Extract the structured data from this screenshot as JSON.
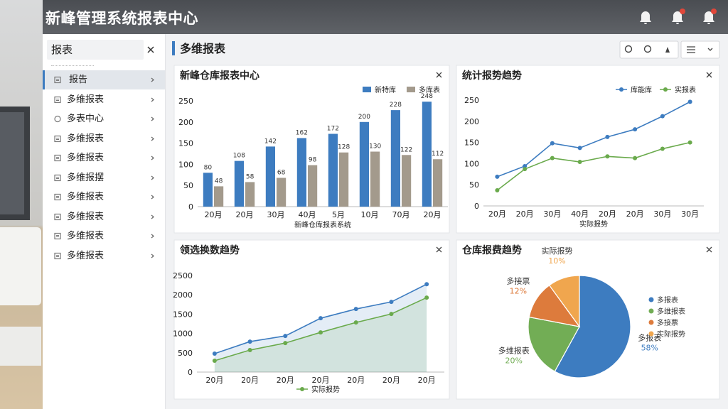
{
  "topbar": {
    "title": "新峰管理系统报表中心"
  },
  "sidebar": {
    "search": "报表",
    "items": [
      "报告",
      "多维报表",
      "多表中心",
      "多维报表",
      "多维报表",
      "多维报摆",
      "多维报表",
      "多维报表",
      "多维报表",
      "多维报表"
    ]
  },
  "page_title": "多维报表",
  "chart_data": [
    {
      "type": "bar",
      "title": "新峰仓库报表中心",
      "xlabel": "新峰仓库报表系统",
      "categories": [
        "20月",
        "20月",
        "30月",
        "40月",
        "5月",
        "10月",
        "70月",
        "20月"
      ],
      "series": [
        {
          "name": "新特库",
          "color": "#3d7cc0",
          "values": [
            80,
            108,
            142,
            162,
            172,
            200,
            228,
            248
          ]
        },
        {
          "name": "多库表",
          "color": "#a39a8c",
          "values": [
            48,
            58,
            68,
            98,
            128,
            130,
            122,
            112
          ]
        }
      ],
      "ylim": [
        0,
        250
      ],
      "yticks": [
        0,
        50,
        100,
        150,
        200,
        250
      ],
      "grid": false
    },
    {
      "type": "line",
      "title": "统计报势趋势",
      "xlabel": "实际报势",
      "categories": [
        "20月",
        "20月",
        "30月",
        "40月",
        "20月",
        "20月",
        "30月",
        "30月"
      ],
      "series": [
        {
          "name": "库能库",
          "color": "#3d7cc0",
          "values": [
            69,
            94,
            148,
            137,
            163,
            181,
            212,
            246
          ]
        },
        {
          "name": "实报表",
          "color": "#6aaa4c",
          "values": [
            37,
            87,
            113,
            104,
            117,
            113,
            135,
            150
          ]
        }
      ],
      "ylim": [
        0,
        250
      ],
      "yticks": [
        0,
        50,
        100,
        150,
        200,
        250
      ],
      "grid": false
    },
    {
      "type": "line",
      "title": "领选换数趋势",
      "area": true,
      "categories": [
        "20月",
        "20月",
        "20月",
        "20月",
        "20月",
        "20月",
        "20月"
      ],
      "series": [
        {
          "color": "#3d7cc0",
          "values": [
            477,
            789,
            936,
            1394,
            1633,
            1817,
            2275
          ]
        },
        {
          "name": "实际报势",
          "color": "#6aaa4c",
          "values": [
            294,
            569,
            752,
            1028,
            1284,
            1505,
            1927
          ]
        }
      ],
      "ylim": [
        0,
        2500
      ],
      "yticks": [
        0,
        500,
        1000,
        1500,
        2000,
        2500
      ],
      "grid": false
    },
    {
      "type": "pie",
      "title": "仓库报费趋势",
      "categories": [
        "多报表",
        "多维报表",
        "多接票",
        "实际报势"
      ],
      "values": [
        58,
        20,
        12,
        10
      ],
      "value_labels": [
        "58%",
        "20%",
        "12%",
        "10%"
      ],
      "colors": [
        "#3d7cc0",
        "#72ad55",
        "#dd7b3c",
        "#f0a64e"
      ]
    }
  ]
}
